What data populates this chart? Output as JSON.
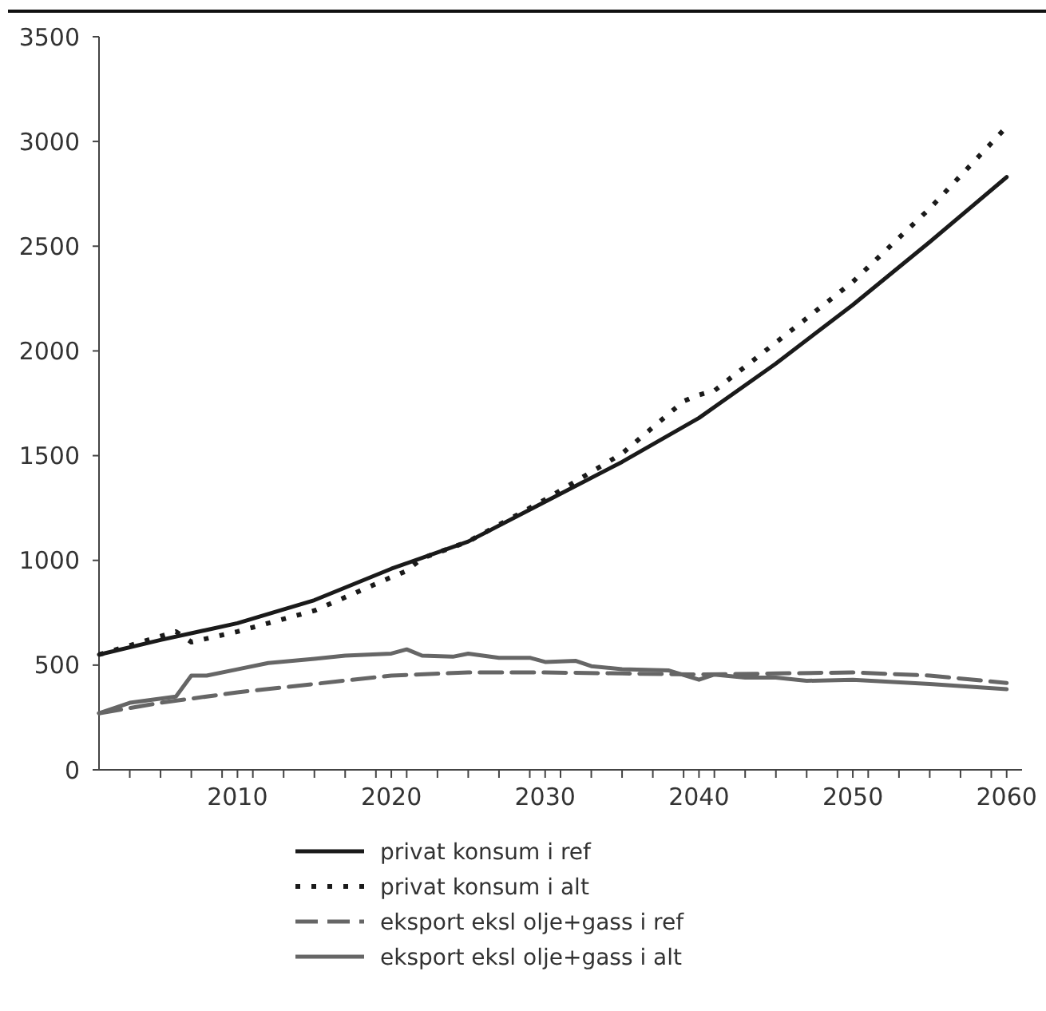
{
  "chart_data": {
    "type": "line",
    "xlim": [
      2001,
      2061
    ],
    "ylim": [
      0,
      3500
    ],
    "xticks": [
      {
        "value": 2003,
        "label": null
      },
      {
        "value": 2005,
        "label": null
      },
      {
        "value": 2007,
        "label": null
      },
      {
        "value": 2009,
        "label": null
      },
      2010,
      {
        "value": 2011,
        "label": null
      },
      {
        "value": 2013,
        "label": null
      },
      {
        "value": 2015,
        "label": null
      },
      {
        "value": 2017,
        "label": null
      },
      {
        "value": 2019,
        "label": null
      },
      2020,
      {
        "value": 2021,
        "label": null
      },
      {
        "value": 2023,
        "label": null
      },
      {
        "value": 2025,
        "label": null
      },
      {
        "value": 2027,
        "label": null
      },
      {
        "value": 2029,
        "label": null
      },
      2030,
      {
        "value": 2031,
        "label": null
      },
      {
        "value": 2033,
        "label": null
      },
      {
        "value": 2035,
        "label": null
      },
      {
        "value": 2037,
        "label": null
      },
      {
        "value": 2039,
        "label": null
      },
      2040,
      {
        "value": 2041,
        "label": null
      },
      {
        "value": 2043,
        "label": null
      },
      {
        "value": 2045,
        "label": null
      },
      {
        "value": 2047,
        "label": null
      },
      {
        "value": 2049,
        "label": null
      },
      2050,
      {
        "value": 2051,
        "label": null
      },
      {
        "value": 2053,
        "label": null
      },
      {
        "value": 2055,
        "label": null
      },
      {
        "value": 2057,
        "label": null
      },
      {
        "value": 2059,
        "label": null
      },
      2060
    ],
    "yticks": [
      0,
      500,
      1000,
      1500,
      2000,
      2500,
      3000,
      3500
    ],
    "grid": false,
    "legend": "bottom",
    "series": [
      {
        "name": "privat konsum i ref",
        "color": "#1a1a1a",
        "line_style": "solid",
        "x": [
          2001,
          2005,
          2010,
          2015,
          2020,
          2025,
          2030,
          2035,
          2040,
          2045,
          2050,
          2055,
          2060
        ],
        "values": [
          550,
          620,
          700,
          810,
          960,
          1090,
          1280,
          1470,
          1680,
          1940,
          2220,
          2520,
          2830
        ]
      },
      {
        "name": "privat konsum i alt",
        "color": "#1a1a1a",
        "line_style": "dotted",
        "x": [
          2001,
          2006,
          2007,
          2010,
          2015,
          2020,
          2021,
          2022,
          2025,
          2030,
          2035,
          2039,
          2040,
          2041,
          2045,
          2050,
          2055,
          2060
        ],
        "values": [
          550,
          660,
          610,
          660,
          760,
          920,
          950,
          1010,
          1090,
          1290,
          1510,
          1760,
          1790,
          1810,
          2040,
          2330,
          2680,
          3070
        ]
      },
      {
        "name": "eksport eksl olje+gass i ref",
        "color": "#666666",
        "line_style": "dashed",
        "x": [
          2001,
          2005,
          2010,
          2015,
          2020,
          2025,
          2030,
          2035,
          2040,
          2045,
          2050,
          2055,
          2060
        ],
        "values": [
          270,
          320,
          370,
          410,
          450,
          465,
          465,
          460,
          455,
          460,
          465,
          450,
          415
        ]
      },
      {
        "name": "eksport eksl olje+gass i alt",
        "color": "#666666",
        "line_style": "solid",
        "x": [
          2001,
          2003,
          2006,
          2007,
          2008,
          2010,
          2012,
          2015,
          2017,
          2020,
          2021,
          2022,
          2024,
          2025,
          2027,
          2029,
          2030,
          2032,
          2033,
          2035,
          2038,
          2040,
          2041,
          2043,
          2045,
          2047,
          2050,
          2055,
          2060
        ],
        "values": [
          270,
          320,
          350,
          450,
          450,
          480,
          510,
          530,
          545,
          555,
          575,
          545,
          540,
          555,
          535,
          535,
          515,
          520,
          495,
          480,
          475,
          430,
          455,
          440,
          440,
          425,
          430,
          410,
          385
        ]
      }
    ]
  }
}
